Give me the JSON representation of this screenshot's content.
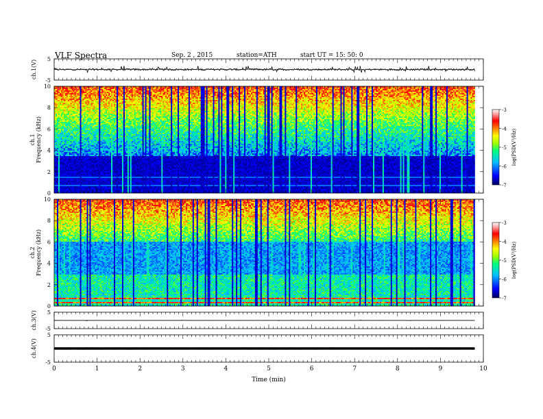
{
  "header": {
    "title": "VLF Spectra",
    "date": "Sep. 2 , 2015",
    "station": "station=ATH",
    "start": "start UT = 15: 50: 0"
  },
  "chart_data": [
    {
      "type": "line",
      "panel": "ch1-waveform",
      "ylabel": "ch.1(V)",
      "ylim": [
        -5,
        5
      ],
      "yticks": [
        "5",
        "-5"
      ],
      "xlim": [
        0,
        10
      ],
      "baseline": 0,
      "spike_amplitude": 1.8
    },
    {
      "type": "heatmap",
      "panel": "ch1-spectrogram",
      "ylabel": "ch.1\nFrequency (kHz)",
      "ylabel_channel": "ch.1",
      "ylabel_axis": "Frequency (kHz)",
      "ylim": [
        0,
        10
      ],
      "yticks": [
        "0",
        "2",
        "4",
        "6",
        "8",
        "10"
      ],
      "xlim": [
        0,
        9.8
      ],
      "colorbar": {
        "label": "log(PSD(V²/Hz)",
        "range": [
          -7,
          -3
        ],
        "ticks": [
          "-3",
          "-4",
          "-5",
          "-6",
          "-7"
        ],
        "colors": [
          "#000080",
          "#0000ff",
          "#00bfff",
          "#00ff80",
          "#c0ff00",
          "#ffff00",
          "#ff8000",
          "#ff0000",
          "#ffc0c0",
          "#ffffff"
        ]
      }
    },
    {
      "type": "heatmap",
      "panel": "ch2-spectrogram",
      "ylabel_channel": "ch.2",
      "ylabel_axis": "Frequency (kHz)",
      "ylim": [
        0,
        10
      ],
      "yticks": [
        "0",
        "2",
        "4",
        "6",
        "8",
        "10"
      ],
      "xlim": [
        0,
        9.8
      ],
      "colorbar": {
        "label": "log(PSD(V²/Hz)",
        "range": [
          -7,
          -3
        ],
        "ticks": [
          "-3",
          "-4",
          "-5",
          "-6",
          "-7"
        ]
      }
    },
    {
      "type": "line",
      "panel": "ch3-waveform",
      "ylabel": "ch.3(V)",
      "ylim": [
        -5,
        5
      ],
      "yticks": [
        "5",
        "-5"
      ],
      "baseline": 0
    },
    {
      "type": "line",
      "panel": "ch4-waveform",
      "ylabel": "ch.4(V)",
      "ylim": [
        -5,
        5
      ],
      "yticks": [
        "5",
        "-5"
      ],
      "baseline": 0
    }
  ],
  "xaxis": {
    "label": "Time (min)",
    "range": [
      0,
      10
    ],
    "ticks": [
      "0",
      "1",
      "2",
      "3",
      "4",
      "5",
      "6",
      "7",
      "8",
      "9",
      "10"
    ]
  }
}
